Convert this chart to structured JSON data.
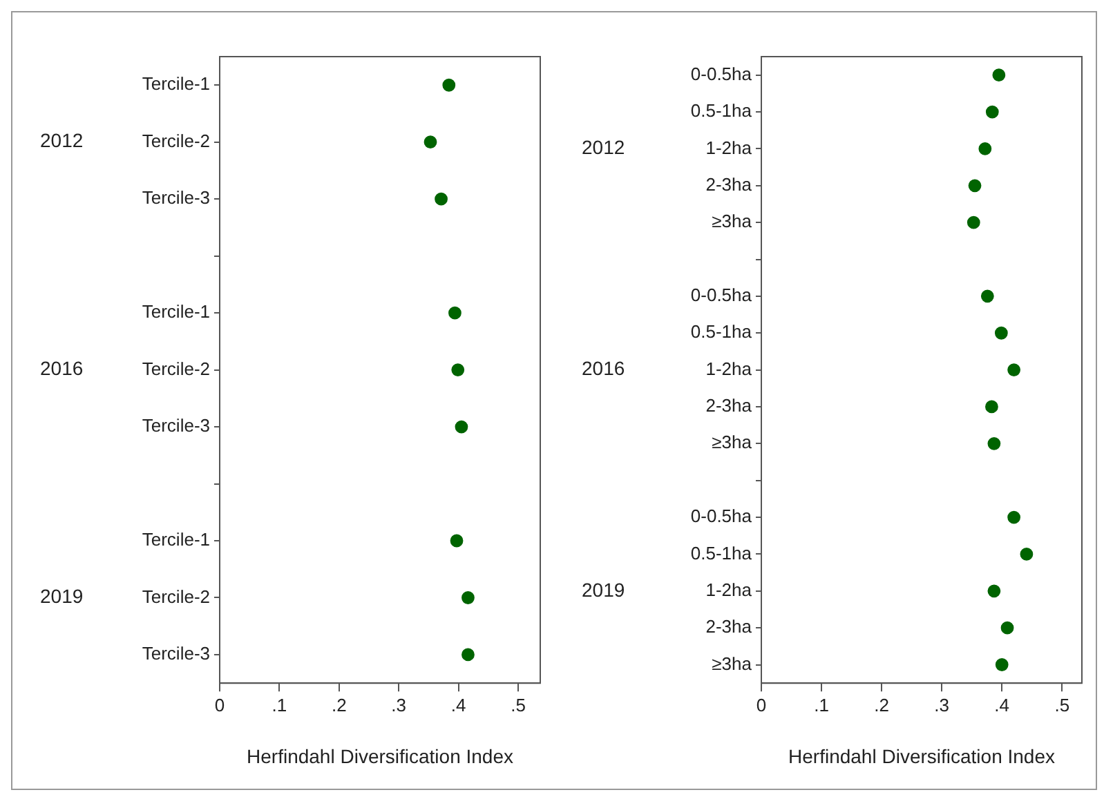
{
  "chart_data": [
    {
      "type": "scatter",
      "orientation": "horizontal",
      "marker": "circle",
      "xlabel": "Herfindahl Diversification Index",
      "annotations": [
        "2012",
        "2016",
        "2019"
      ],
      "categories": [
        "Tercile-1",
        "Tercile-2",
        "Tercile-3",
        null,
        "Tercile-1",
        "Tercile-2",
        "Tercile-3",
        null,
        "Tercile-1",
        "Tercile-2",
        "Tercile-3"
      ],
      "xlim": [
        0,
        0.537
      ],
      "xticks": [
        0,
        {
          "value": 0.1,
          "label": ".1"
        },
        {
          "value": 0.2,
          "label": ".2"
        },
        {
          "value": 0.3,
          "label": ".3"
        },
        {
          "value": 0.4,
          "label": ".4"
        },
        {
          "value": 0.5,
          "label": ".5"
        }
      ],
      "grid": false,
      "series": [
        {
          "color": "#006400",
          "values": [
            0.384,
            0.353,
            0.371,
            null,
            null,
            null,
            null,
            null,
            null,
            null,
            null
          ]
        },
        {
          "color": "#006400",
          "values": [
            null,
            null,
            null,
            null,
            0.394,
            0.399,
            0.405,
            null,
            null,
            null,
            null
          ]
        },
        {
          "color": "#006400",
          "values": [
            null,
            null,
            null,
            null,
            null,
            null,
            null,
            null,
            0.397,
            0.416,
            0.416
          ]
        }
      ]
    },
    {
      "type": "scatter",
      "orientation": "horizontal",
      "marker": "circle",
      "xlabel": "Herfindahl Diversification Index",
      "annotations": [
        "2012",
        "2016",
        "2019"
      ],
      "categories": [
        "0-0.5ha",
        "0.5-1ha",
        "1-2ha",
        "2-3ha",
        "≥3ha",
        null,
        "0-0.5ha",
        "0.5-1ha",
        "1-2ha",
        "2-3ha",
        "≥3ha",
        null,
        "0-0.5ha",
        "0.5-1ha",
        "1-2ha",
        "2-3ha",
        "≥3ha"
      ],
      "xlim": [
        0,
        0.533
      ],
      "xticks": [
        0,
        {
          "value": 0.1,
          "label": ".1"
        },
        {
          "value": 0.2,
          "label": ".2"
        },
        {
          "value": 0.3,
          "label": ".3"
        },
        {
          "value": 0.4,
          "label": ".4"
        },
        {
          "value": 0.5,
          "label": ".5"
        }
      ],
      "grid": false,
      "series": [
        {
          "color": "#006400",
          "values": [
            0.395,
            0.384,
            0.372,
            0.355,
            0.353,
            null,
            null,
            null,
            null,
            null,
            null,
            null,
            null,
            null,
            null,
            null,
            null
          ]
        },
        {
          "color": "#006400",
          "values": [
            null,
            null,
            null,
            null,
            null,
            null,
            0.376,
            0.399,
            0.42,
            0.383,
            0.387,
            null,
            null,
            null,
            null,
            null,
            null
          ]
        },
        {
          "color": "#006400",
          "values": [
            null,
            null,
            null,
            null,
            null,
            null,
            null,
            null,
            null,
            null,
            null,
            null,
            0.42,
            0.441,
            0.387,
            0.409,
            0.4
          ]
        }
      ]
    }
  ]
}
